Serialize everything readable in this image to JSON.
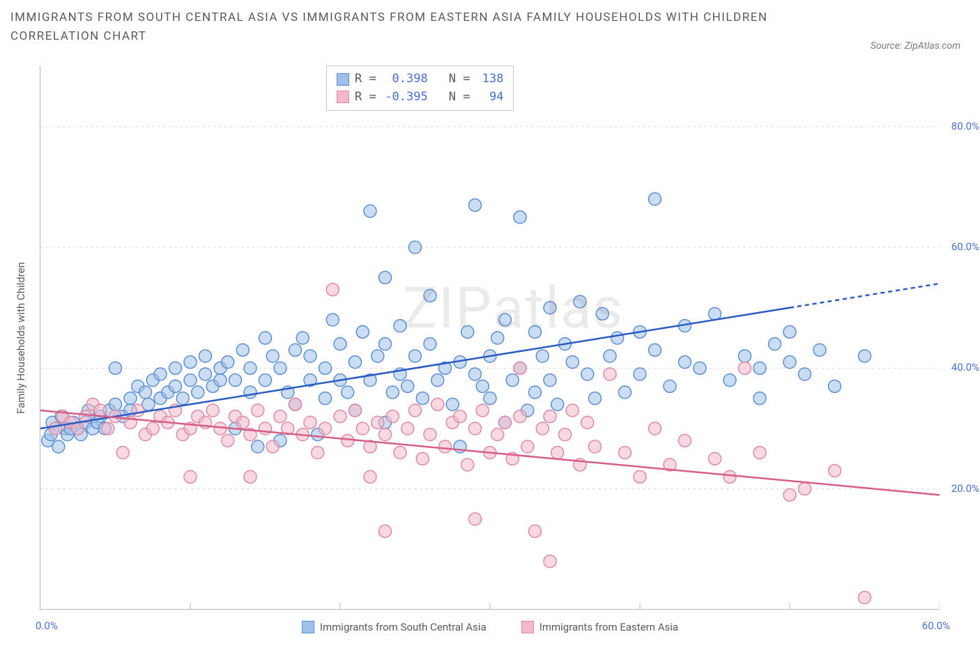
{
  "title_line1": "IMMIGRANTS FROM SOUTH CENTRAL ASIA VS IMMIGRANTS FROM EASTERN ASIA FAMILY HOUSEHOLDS WITH CHILDREN",
  "title_line2": "CORRELATION CHART",
  "source": "Source: ZipAtlas.com",
  "watermark": "ZIPatlas",
  "ylabel": "Family Households with Children",
  "chart": {
    "type": "scatter",
    "xlim": [
      0,
      60
    ],
    "ylim": [
      0,
      90
    ],
    "x_origin_label": "0.0%",
    "x_end_label": "60.0%",
    "y_ticks": [
      20,
      40,
      60,
      80
    ],
    "y_tick_labels": [
      "20.0%",
      "40.0%",
      "60.0%",
      "80.0%"
    ],
    "x_ticks": [
      10,
      20,
      30,
      40,
      50,
      60
    ],
    "grid_color": "#dedede",
    "background_color": "#ffffff",
    "marker_radius": 9,
    "marker_opacity": 0.55,
    "marker_stroke_width": 1.5,
    "series": [
      {
        "name": "Immigrants from South Central Asia",
        "R": "0.398",
        "N": "138",
        "fill": "#9ec1ea",
        "stroke": "#5a8fd6",
        "trend": {
          "x1": 0,
          "y1": 30,
          "x2": 50,
          "y2": 50,
          "dash_after_x": 50,
          "x3": 60,
          "y3": 54,
          "color": "#2a5bc4",
          "width": 2.5
        },
        "points": [
          [
            0.5,
            28
          ],
          [
            0.7,
            29
          ],
          [
            0.8,
            31
          ],
          [
            1,
            30
          ],
          [
            1.2,
            27
          ],
          [
            1.4,
            32
          ],
          [
            1.6,
            30
          ],
          [
            1.8,
            29
          ],
          [
            2,
            30
          ],
          [
            2.2,
            31
          ],
          [
            2.5,
            30
          ],
          [
            2.7,
            29
          ],
          [
            3,
            31
          ],
          [
            3.2,
            33
          ],
          [
            3.5,
            30
          ],
          [
            3.8,
            31
          ],
          [
            4,
            32
          ],
          [
            4.3,
            30
          ],
          [
            4.6,
            33
          ],
          [
            5,
            34
          ],
          [
            5,
            40
          ],
          [
            5.5,
            32
          ],
          [
            6,
            35
          ],
          [
            6,
            33
          ],
          [
            6.5,
            37
          ],
          [
            7,
            36
          ],
          [
            7.2,
            34
          ],
          [
            7.5,
            38
          ],
          [
            8,
            35
          ],
          [
            8,
            39
          ],
          [
            8.5,
            36
          ],
          [
            9,
            37
          ],
          [
            9,
            40
          ],
          [
            9.5,
            35
          ],
          [
            10,
            38
          ],
          [
            10,
            41
          ],
          [
            10.5,
            36
          ],
          [
            11,
            39
          ],
          [
            11,
            42
          ],
          [
            11.5,
            37
          ],
          [
            12,
            40
          ],
          [
            12,
            38
          ],
          [
            12.5,
            41
          ],
          [
            13,
            30
          ],
          [
            13,
            38
          ],
          [
            13.5,
            43
          ],
          [
            14,
            36
          ],
          [
            14,
            40
          ],
          [
            14.5,
            27
          ],
          [
            15,
            45
          ],
          [
            15,
            38
          ],
          [
            15.5,
            42
          ],
          [
            16,
            28
          ],
          [
            16,
            40
          ],
          [
            16.5,
            36
          ],
          [
            17,
            34
          ],
          [
            17,
            43
          ],
          [
            17.5,
            45
          ],
          [
            18,
            38
          ],
          [
            18,
            42
          ],
          [
            18.5,
            29
          ],
          [
            19,
            35
          ],
          [
            19,
            40
          ],
          [
            19.5,
            48
          ],
          [
            20,
            38
          ],
          [
            20,
            44
          ],
          [
            20.5,
            36
          ],
          [
            21,
            33
          ],
          [
            21,
            41
          ],
          [
            21.5,
            46
          ],
          [
            22,
            38
          ],
          [
            22,
            66
          ],
          [
            22.5,
            42
          ],
          [
            23,
            31
          ],
          [
            23,
            44
          ],
          [
            23,
            55
          ],
          [
            23.5,
            36
          ],
          [
            24,
            39
          ],
          [
            24,
            47
          ],
          [
            24.5,
            37
          ],
          [
            25,
            60
          ],
          [
            25,
            42
          ],
          [
            25.5,
            35
          ],
          [
            26,
            44
          ],
          [
            26,
            52
          ],
          [
            26.5,
            38
          ],
          [
            27,
            40
          ],
          [
            27.5,
            34
          ],
          [
            28,
            27
          ],
          [
            28,
            41
          ],
          [
            28.5,
            46
          ],
          [
            29,
            67
          ],
          [
            29,
            39
          ],
          [
            29.5,
            37
          ],
          [
            30,
            42
          ],
          [
            30,
            35
          ],
          [
            30.5,
            45
          ],
          [
            31,
            31
          ],
          [
            31,
            48
          ],
          [
            31.5,
            38
          ],
          [
            32,
            65
          ],
          [
            32,
            40
          ],
          [
            32.5,
            33
          ],
          [
            33,
            46
          ],
          [
            33,
            36
          ],
          [
            33.5,
            42
          ],
          [
            34,
            50
          ],
          [
            34,
            38
          ],
          [
            34.5,
            34
          ],
          [
            35,
            44
          ],
          [
            35.5,
            41
          ],
          [
            36,
            51
          ],
          [
            36.5,
            39
          ],
          [
            37,
            35
          ],
          [
            37.5,
            49
          ],
          [
            38,
            42
          ],
          [
            38.5,
            45
          ],
          [
            39,
            36
          ],
          [
            40,
            39
          ],
          [
            40,
            46
          ],
          [
            41,
            43
          ],
          [
            41,
            68
          ],
          [
            42,
            37
          ],
          [
            43,
            41
          ],
          [
            43,
            47
          ],
          [
            44,
            40
          ],
          [
            45,
            49
          ],
          [
            46,
            38
          ],
          [
            47,
            42
          ],
          [
            48,
            35
          ],
          [
            48,
            40
          ],
          [
            49,
            44
          ],
          [
            50,
            41
          ],
          [
            50,
            46
          ],
          [
            51,
            39
          ],
          [
            52,
            43
          ],
          [
            53,
            37
          ],
          [
            55,
            42
          ]
        ]
      },
      {
        "name": "Immigrants from Eastern Asia",
        "R": "-0.395",
        "N": "94",
        "fill": "#f3b9c8",
        "stroke": "#e088a4",
        "trend": {
          "x1": 0,
          "y1": 33,
          "x2": 60,
          "y2": 19,
          "color": "#d75e85",
          "width": 2.5
        },
        "points": [
          [
            1,
            30
          ],
          [
            1.5,
            32
          ],
          [
            2,
            31
          ],
          [
            2.5,
            30
          ],
          [
            3,
            32
          ],
          [
            3.5,
            34
          ],
          [
            4,
            33
          ],
          [
            4.5,
            30
          ],
          [
            5,
            32
          ],
          [
            5.5,
            26
          ],
          [
            6,
            31
          ],
          [
            6.5,
            33
          ],
          [
            7,
            29
          ],
          [
            7.5,
            30
          ],
          [
            8,
            32
          ],
          [
            8.5,
            31
          ],
          [
            9,
            33
          ],
          [
            9.5,
            29
          ],
          [
            10,
            30
          ],
          [
            10,
            22
          ],
          [
            10.5,
            32
          ],
          [
            11,
            31
          ],
          [
            11.5,
            33
          ],
          [
            12,
            30
          ],
          [
            12.5,
            28
          ],
          [
            13,
            32
          ],
          [
            13.5,
            31
          ],
          [
            14,
            29
          ],
          [
            14,
            22
          ],
          [
            14.5,
            33
          ],
          [
            15,
            30
          ],
          [
            15.5,
            27
          ],
          [
            16,
            32
          ],
          [
            16.5,
            30
          ],
          [
            17,
            34
          ],
          [
            17.5,
            29
          ],
          [
            18,
            31
          ],
          [
            18.5,
            26
          ],
          [
            19,
            30
          ],
          [
            19.5,
            53
          ],
          [
            20,
            32
          ],
          [
            20.5,
            28
          ],
          [
            21,
            33
          ],
          [
            21.5,
            30
          ],
          [
            22,
            27
          ],
          [
            22,
            22
          ],
          [
            22.5,
            31
          ],
          [
            23,
            29
          ],
          [
            23,
            13
          ],
          [
            23.5,
            32
          ],
          [
            24,
            26
          ],
          [
            24.5,
            30
          ],
          [
            25,
            33
          ],
          [
            25.5,
            25
          ],
          [
            26,
            29
          ],
          [
            26.5,
            34
          ],
          [
            27,
            27
          ],
          [
            27.5,
            31
          ],
          [
            28,
            32
          ],
          [
            28.5,
            24
          ],
          [
            29,
            30
          ],
          [
            29,
            15
          ],
          [
            29.5,
            33
          ],
          [
            30,
            26
          ],
          [
            30.5,
            29
          ],
          [
            31,
            31
          ],
          [
            31.5,
            25
          ],
          [
            32,
            32
          ],
          [
            32,
            40
          ],
          [
            32.5,
            27
          ],
          [
            33,
            13
          ],
          [
            33.5,
            30
          ],
          [
            34,
            32
          ],
          [
            34,
            8
          ],
          [
            34.5,
            26
          ],
          [
            35,
            29
          ],
          [
            35.5,
            33
          ],
          [
            36,
            24
          ],
          [
            36.5,
            31
          ],
          [
            37,
            27
          ],
          [
            38,
            39
          ],
          [
            39,
            26
          ],
          [
            40,
            22
          ],
          [
            41,
            30
          ],
          [
            42,
            24
          ],
          [
            43,
            28
          ],
          [
            45,
            25
          ],
          [
            46,
            22
          ],
          [
            47,
            40
          ],
          [
            48,
            26
          ],
          [
            50,
            19
          ],
          [
            51,
            20
          ],
          [
            53,
            23
          ],
          [
            55,
            2
          ]
        ]
      }
    ]
  },
  "legend": {
    "series1_label": "Immigrants from South Central Asia",
    "series2_label": "Immigrants from Eastern Asia"
  },
  "stats_box": {
    "R_label": "R =",
    "N_label": "N ="
  }
}
